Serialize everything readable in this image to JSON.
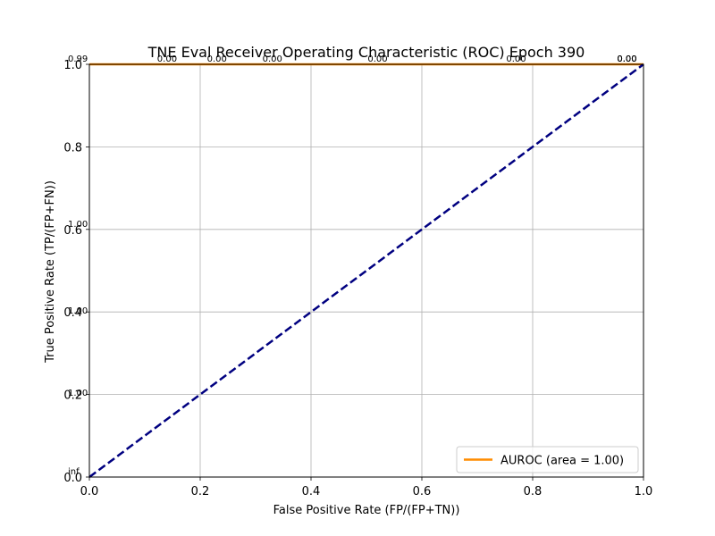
{
  "chart_data": {
    "type": "line",
    "title": "TNE Eval Receiver Operating Characteristic (ROC) Epoch 390",
    "xlabel": "False Positive Rate (FP/(FP+TN))",
    "ylabel": "True Positive Rate (TP/(FP+FN))",
    "xlim": [
      0.0,
      1.0
    ],
    "ylim": [
      0.0,
      1.0
    ],
    "xticks": [
      "0.0",
      "0.2",
      "0.4",
      "0.6",
      "0.8",
      "1.0"
    ],
    "yticks": [
      "0.0",
      "0.2",
      "0.4",
      "0.6",
      "0.8",
      "1.0"
    ],
    "grid": true,
    "legend_position": "lower-right",
    "series": [
      {
        "name": "AUROC (area = 1.00)",
        "color": "#ff8c00",
        "style": "solid",
        "x": [
          0.0,
          1.0
        ],
        "y": [
          1.0,
          1.0
        ]
      },
      {
        "color": "#000080",
        "style": "dashed",
        "x": [
          0.0,
          1.0
        ],
        "y": [
          0.0,
          1.0
        ]
      }
    ],
    "annotations": [
      {
        "text": "inf",
        "x": 0.0,
        "y": 0.0
      },
      {
        "text": "1.00",
        "x": 0.0,
        "y": 0.19
      },
      {
        "text": "1.00",
        "x": 0.0,
        "y": 0.39
      },
      {
        "text": "1.00",
        "x": 0.0,
        "y": 0.6
      },
      {
        "text": "0.99",
        "x": 0.0,
        "y": 1.0
      },
      {
        "text": "0.00",
        "x": 0.14,
        "y": 1.0
      },
      {
        "text": "0.00",
        "x": 0.23,
        "y": 1.0
      },
      {
        "text": "0.00",
        "x": 0.33,
        "y": 1.0
      },
      {
        "text": "0.00",
        "x": 0.52,
        "y": 1.0
      },
      {
        "text": "0.00",
        "x": 0.77,
        "y": 1.0
      },
      {
        "text": "0.00",
        "x": 0.97,
        "y": 1.0
      },
      {
        "text": "0.00",
        "x": 0.97,
        "y": 1.0
      },
      {
        "text": "0.00",
        "x": 0.97,
        "y": 1.0
      }
    ]
  }
}
